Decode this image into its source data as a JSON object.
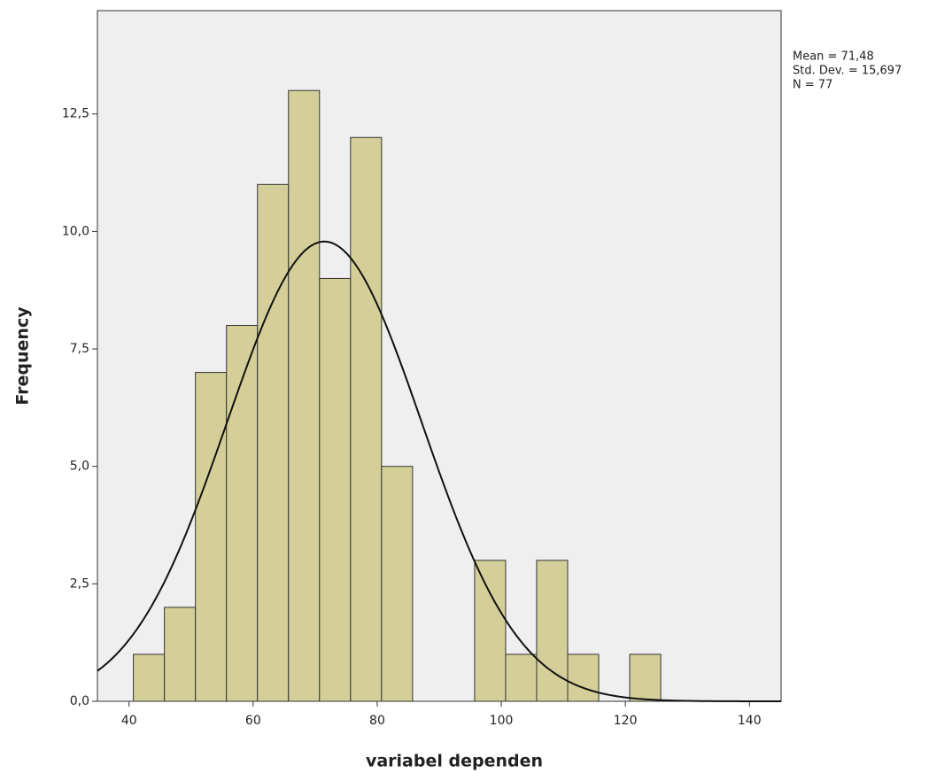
{
  "chart_data": {
    "type": "histogram",
    "x_label": "variabel dependen",
    "y_label": "Frequency",
    "bins": [
      40.7,
      45.7,
      50.7,
      55.7,
      60.7,
      65.7,
      70.7,
      75.7,
      80.7,
      85.7,
      90.7,
      95.7,
      100.7,
      105.7,
      110.7,
      115.7,
      120.7,
      125.7
    ],
    "counts": [
      1,
      2,
      7,
      8,
      11,
      13,
      9,
      12,
      5,
      0,
      0,
      3,
      1,
      3,
      1,
      0,
      1
    ],
    "color": "#d4cf98",
    "edge_color": "#333333",
    "curve_color": "#111111",
    "background": "#efefef",
    "xlim": [
      34.9,
      145.1
    ],
    "xticks": [
      40,
      60,
      80,
      100,
      120,
      140
    ],
    "ylim": [
      0,
      14.7
    ],
    "yticks": [
      {
        "value": 0,
        "label": "0,0"
      },
      {
        "value": 2.5,
        "label": "2,5"
      },
      {
        "value": 5,
        "label": "5,0"
      },
      {
        "value": 7.5,
        "label": "7,5"
      },
      {
        "value": 10,
        "label": "10,0"
      },
      {
        "value": 12.5,
        "label": "12,5"
      }
    ],
    "stats": {
      "mean": {
        "value": 71.48,
        "label": "Mean = 71,48"
      },
      "std_dev": {
        "value": 15.697,
        "label": "Std. Dev. = 15,697"
      },
      "n": {
        "value": 77,
        "label": "N = 77"
      }
    }
  }
}
